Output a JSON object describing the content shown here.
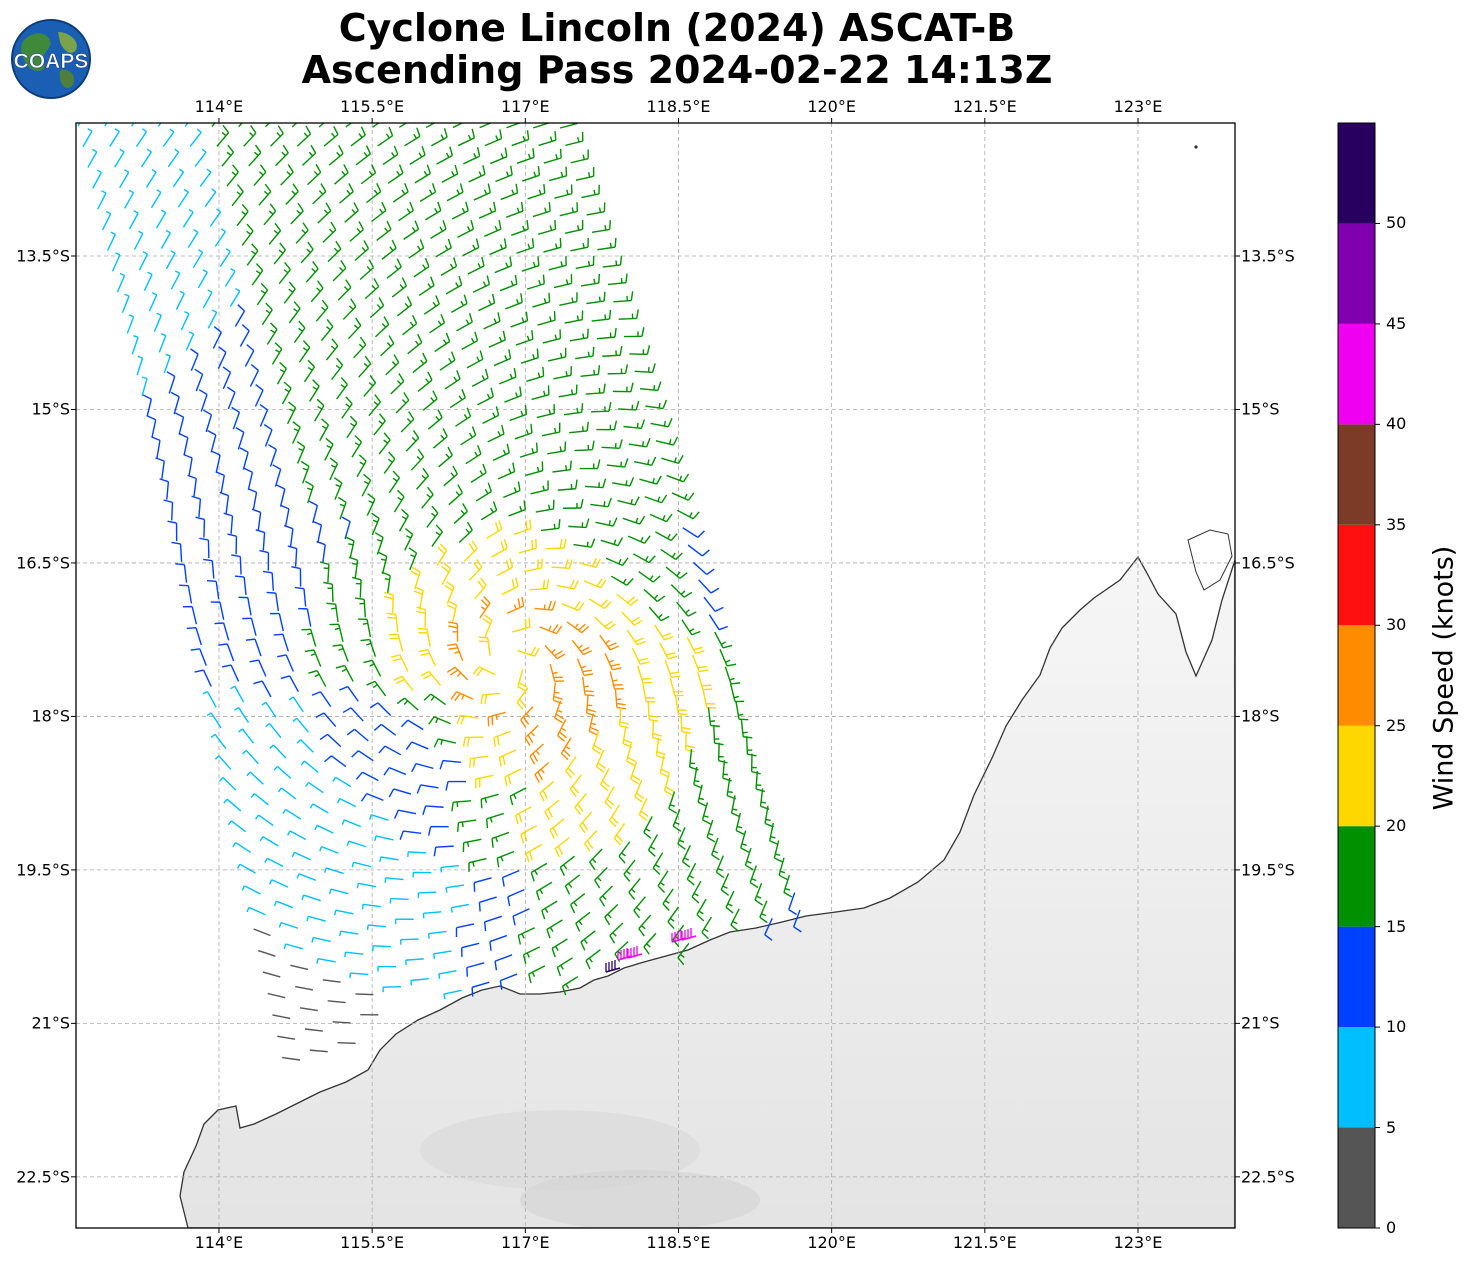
{
  "title": {
    "line1": "Cyclone Lincoln (2024) ASCAT-B",
    "line2": "Ascending Pass 2024-02-22 14:13Z"
  },
  "logo": {
    "text": "COAPS",
    "icon": "globe-logo-icon"
  },
  "map": {
    "projection": "PlateCarree",
    "lon_range": [
      112.6,
      123.95
    ],
    "lat_range": [
      -23.0,
      -12.2
    ],
    "gridlines": true,
    "top_lon_labels": [
      "114°E",
      "115.5°E",
      "117°E",
      "118.5°E",
      "120°E",
      "121.5°E",
      "123°E"
    ],
    "bottom_lon_labels": [
      "114°E",
      "115.5°E",
      "117°E",
      "118.5°E",
      "120°E",
      "121.5°E",
      "123°E"
    ],
    "left_lat_labels": [
      "13.5°S",
      "15°S",
      "16.5°S",
      "18°S",
      "19.5°S",
      "21°S",
      "22.5°S"
    ],
    "right_lat_labels": [
      "13.5°S",
      "15°S",
      "16.5°S",
      "18°S",
      "19.5°S",
      "21°S",
      "22.5°S"
    ],
    "storm_center": {
      "lon": 116.85,
      "lat": -17.45
    },
    "swath": "ascending ASCAT-B swath, wind barbs colored by speed",
    "land": "Western Australia / Pilbara coast, grey shaded land"
  },
  "colorbar": {
    "label": "Wind Speed (knots)",
    "ticks": [
      "0",
      "5",
      "10",
      "15",
      "20",
      "25",
      "30",
      "35",
      "40",
      "45",
      "50"
    ],
    "colors": [
      "#555555",
      "#00bfff",
      "#0040ff",
      "#009000",
      "#ffd700",
      "#ff8c00",
      "#ff1010",
      "#7b3b27",
      "#f000f0",
      "#8000b0",
      "#280060"
    ]
  }
}
